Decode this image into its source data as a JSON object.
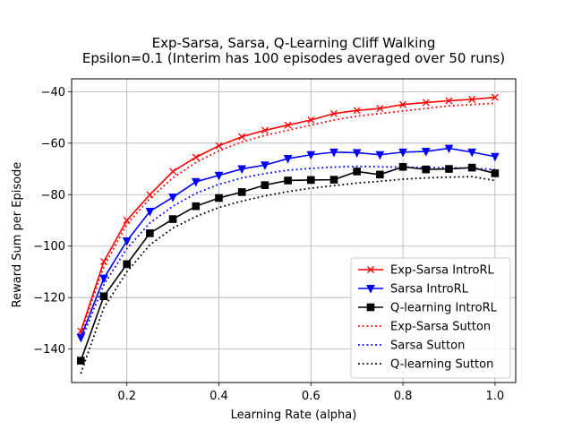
{
  "chart_data": {
    "type": "line",
    "title": "Exp-Sarsa, Sarsa, Q-Learning Cliff Walking",
    "subtitle": "Epsilon=0.1 (Interim has 100 episodes averaged over 50 runs)",
    "xlabel": "Learning Rate (alpha)",
    "ylabel": "Reward Sum per Episode",
    "xlim": [
      0.08,
      1.045
    ],
    "ylim": [
      -153,
      -35
    ],
    "xticks": [
      0.2,
      0.4,
      0.6,
      0.8,
      1.0
    ],
    "xtick_labels": [
      "0.2",
      "0.4",
      "0.6",
      "0.8",
      "1.0"
    ],
    "yticks": [
      -140,
      -120,
      -100,
      -80,
      -60,
      -40
    ],
    "ytick_labels": [
      "−140",
      "−120",
      "−100",
      "−80",
      "−60",
      "−40"
    ],
    "grid": true,
    "legend_position": "lower-right",
    "x": [
      0.1,
      0.15,
      0.2,
      0.25,
      0.3,
      0.35,
      0.4,
      0.45,
      0.5,
      0.55,
      0.6,
      0.65,
      0.7,
      0.75,
      0.8,
      0.85,
      0.9,
      0.95,
      1.0
    ],
    "series": [
      {
        "name": "Exp-Sarsa IntroRL",
        "color": "#ff0000",
        "style": "solid",
        "marker": "x",
        "values": [
          -133,
          -106,
          -90,
          -80,
          -71,
          -65.5,
          -61,
          -57.5,
          -55,
          -53,
          -51,
          -48.5,
          -47.3,
          -46.5,
          -45,
          -44.2,
          -43.5,
          -43,
          -42.2
        ]
      },
      {
        "name": "Sarsa IntroRL",
        "color": "#0000ff",
        "style": "solid",
        "marker": "triangle-down",
        "values": [
          -135.5,
          -112.5,
          -98,
          -86.5,
          -81,
          -75,
          -72.5,
          -70,
          -68.5,
          -66,
          -64.5,
          -63.5,
          -63.7,
          -64.5,
          -63.5,
          -63.2,
          -62,
          -63.5,
          -65.2
        ]
      },
      {
        "name": "Q-learning IntroRL",
        "color": "#000000",
        "style": "solid",
        "marker": "square",
        "values": [
          -144.5,
          -119.5,
          -107,
          -95,
          -89.5,
          -84.5,
          -81.3,
          -79,
          -76.3,
          -74.5,
          -74.3,
          -74.2,
          -71,
          -72.2,
          -69.2,
          -70.2,
          -70,
          -69.5,
          -71.7
        ]
      },
      {
        "name": "Exp-Sarsa Sutton",
        "color": "#ff0000",
        "style": "dotted",
        "marker": "none",
        "values": [
          -134,
          -108,
          -91.5,
          -81.5,
          -73.5,
          -67.5,
          -63,
          -59.5,
          -57,
          -55,
          -53,
          -51,
          -49.5,
          -48.5,
          -47.5,
          -46.5,
          -45.5,
          -45,
          -44.5
        ]
      },
      {
        "name": "Sarsa Sutton",
        "color": "#0000ff",
        "style": "dotted",
        "marker": "none",
        "values": [
          -137,
          -115,
          -101,
          -91,
          -84.5,
          -79.5,
          -76,
          -73.5,
          -71.8,
          -70.5,
          -69.8,
          -69.3,
          -69,
          -69.2,
          -69.3,
          -69.5,
          -69.5,
          -69.8,
          -70.2
        ]
      },
      {
        "name": "Q-learning Sutton",
        "color": "#000000",
        "style": "dotted",
        "marker": "none",
        "values": [
          -149.5,
          -124,
          -110,
          -99.5,
          -93,
          -88.5,
          -85,
          -82.5,
          -80.5,
          -78.8,
          -77.5,
          -76.5,
          -75.5,
          -74.8,
          -74,
          -73.5,
          -73.2,
          -73,
          -74.5
        ]
      }
    ]
  }
}
